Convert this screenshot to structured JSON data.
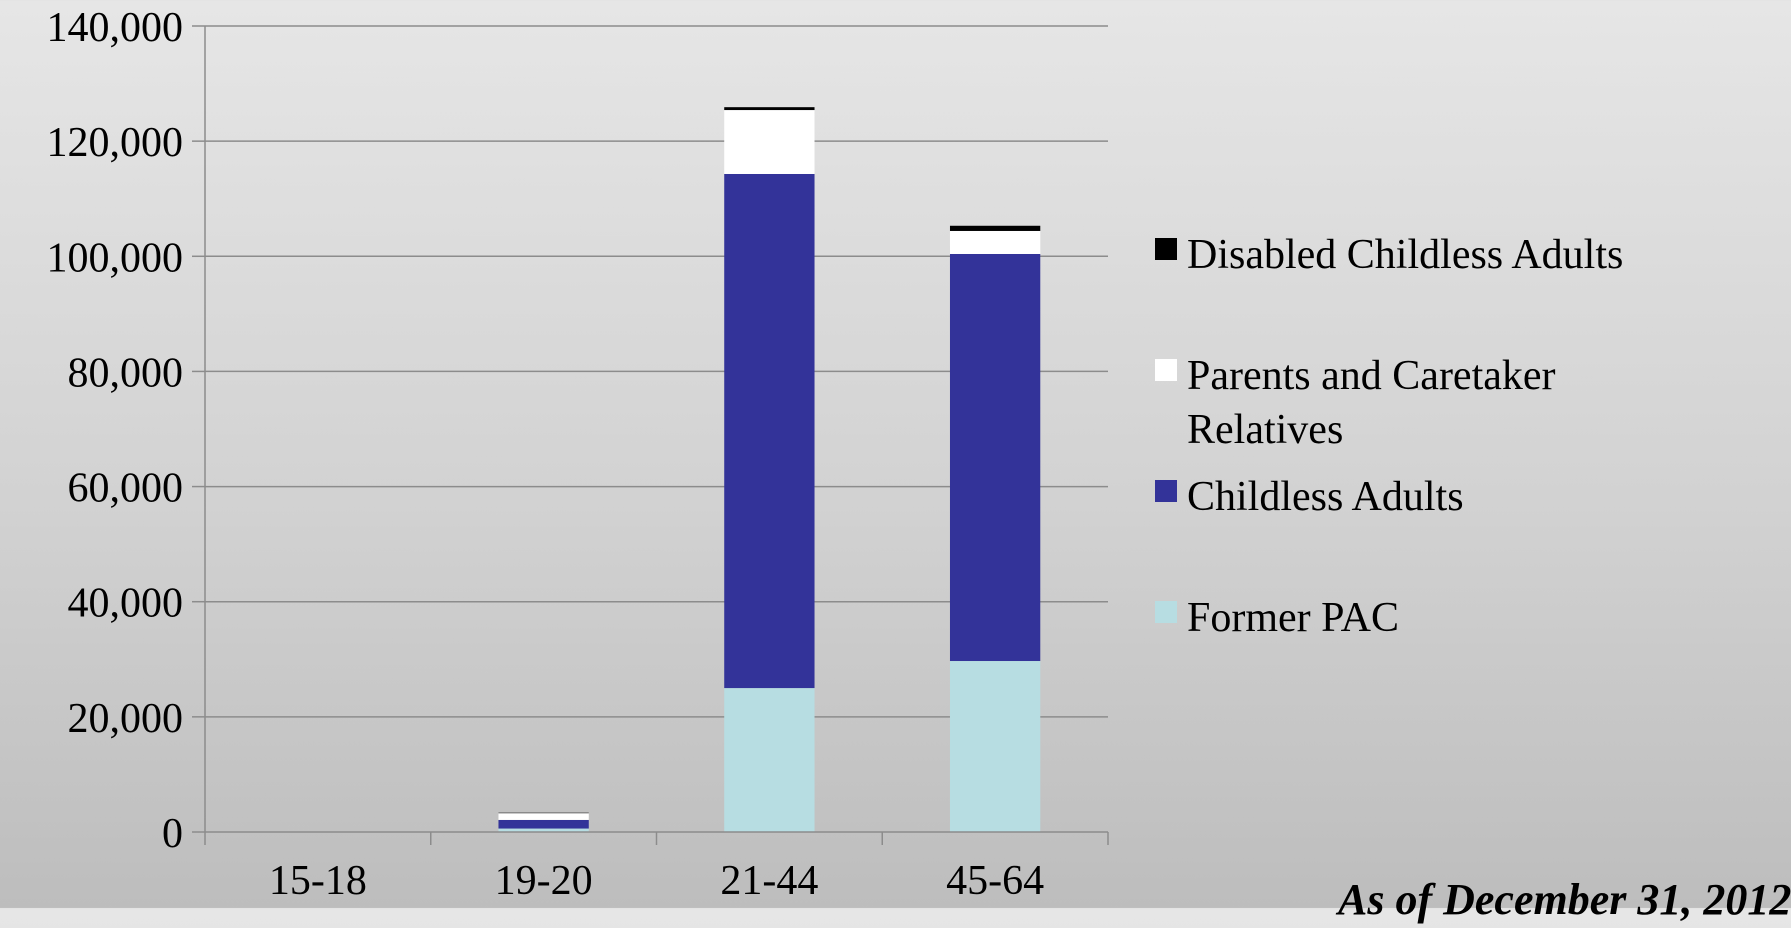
{
  "chart_data": {
    "type": "bar",
    "stacked": true,
    "categories": [
      "15-18",
      "19-20",
      "21-44",
      "45-64"
    ],
    "series": [
      {
        "name": "Former PAC",
        "color": "#b7dde2",
        "values": [
          0,
          600,
          25000,
          29700
        ]
      },
      {
        "name": "Childless Adults",
        "color": "#333399",
        "values": [
          50,
          1500,
          89300,
          70700
        ]
      },
      {
        "name": "Parents and Caretaker Relatives",
        "color": "#ffffff",
        "values": [
          30,
          1200,
          11100,
          4000
        ]
      },
      {
        "name": "Disabled Childless Adults",
        "color": "#000000",
        "values": [
          0,
          50,
          500,
          900
        ]
      }
    ],
    "ylim": [
      0,
      140000
    ],
    "yticks": [
      0,
      20000,
      40000,
      60000,
      80000,
      100000,
      120000,
      140000
    ],
    "ytick_labels": [
      "0",
      "20,000",
      "40,000",
      "60,000",
      "80,000",
      "100,000",
      "120,000",
      "140,000"
    ],
    "grid": true,
    "legend_position": "right",
    "title": "",
    "xlabel": "",
    "ylabel": ""
  },
  "legend": {
    "items": [
      {
        "label": "Disabled Childless Adults",
        "color": "#000000"
      },
      {
        "label": "Parents and Caretaker Relatives",
        "color": "#ffffff"
      },
      {
        "label": "Childless Adults",
        "color": "#333399"
      },
      {
        "label": "Former PAC",
        "color": "#b7dde2"
      }
    ]
  },
  "footnote": {
    "text": "As of December 31, 2012"
  }
}
